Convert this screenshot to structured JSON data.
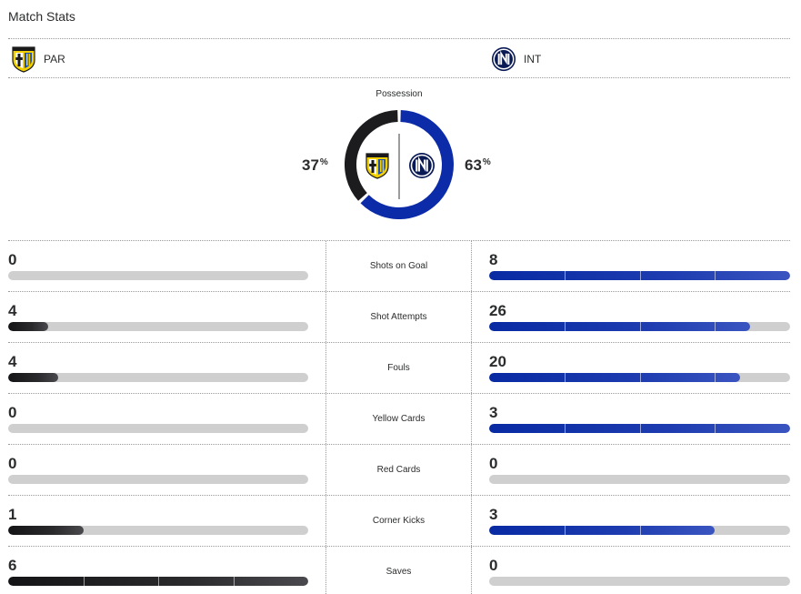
{
  "title": "Match Stats",
  "teams": {
    "home": {
      "abbr": "PAR",
      "crest": "parma-crest-icon",
      "color": "#1c1c1e"
    },
    "away": {
      "abbr": "INT",
      "crest": "inter-crest-icon",
      "color": "#0c2ba8"
    }
  },
  "possession": {
    "label": "Possession",
    "home_value": "37",
    "away_value": "63",
    "unit": "%"
  },
  "stats": [
    {
      "label": "Shots on Goal",
      "home": 0,
      "away": 8
    },
    {
      "label": "Shot Attempts",
      "home": 4,
      "away": 26
    },
    {
      "label": "Fouls",
      "home": 4,
      "away": 20
    },
    {
      "label": "Yellow Cards",
      "home": 0,
      "away": 3
    },
    {
      "label": "Red Cards",
      "home": 0,
      "away": 0
    },
    {
      "label": "Corner Kicks",
      "home": 1,
      "away": 3
    },
    {
      "label": "Saves",
      "home": 6,
      "away": 0
    }
  ]
}
